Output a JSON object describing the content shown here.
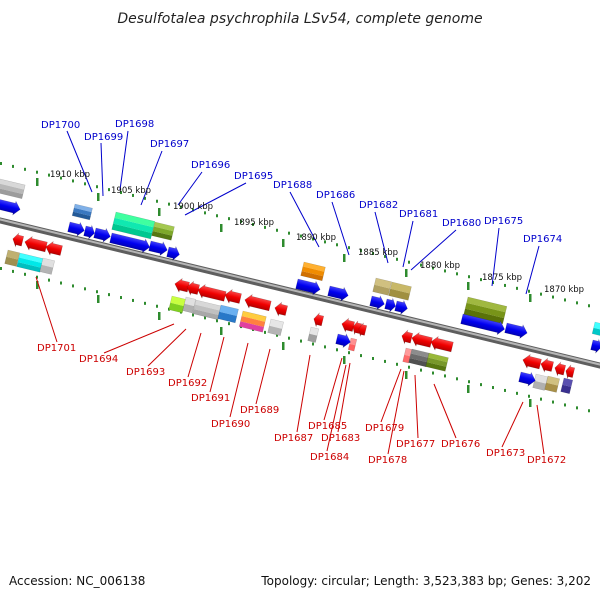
{
  "title": "Desulfotalea psychrophila LSv54, complete genome",
  "footer": {
    "accession": "Accession: NC_006138",
    "summary": "Topology: circular; Length: 3,523,383 bp; Genes: 3,202"
  },
  "colors": {
    "backbone": "#8a8a8a",
    "tick": "#2e8b2e",
    "top_label": "#0000cc",
    "bottom_label": "#cc0000"
  },
  "scale_labels": [
    "1910 kbp",
    "1905 kbp",
    "1900 kbp",
    "1895 kbp",
    "1890 kbp",
    "1885 kbp",
    "1880 kbp",
    "1875 kbp",
    "1870 kbp"
  ],
  "genes_top": [
    "DP1700",
    "DP1699",
    "DP1698",
    "DP1697",
    "DP1696",
    "DP1695",
    "DP1688",
    "DP1686",
    "DP1682",
    "DP1681",
    "DP1680",
    "DP1675",
    "DP1674"
  ],
  "genes_bottom": [
    "DP1701",
    "DP1694",
    "DP1693",
    "DP1692",
    "DP1691",
    "DP1690",
    "DP1689",
    "DP1687",
    "DP1685",
    "DP1683",
    "DP1684",
    "DP1679",
    "DP1678",
    "DP1677",
    "DP1676",
    "DP1673",
    "DP1672"
  ]
}
